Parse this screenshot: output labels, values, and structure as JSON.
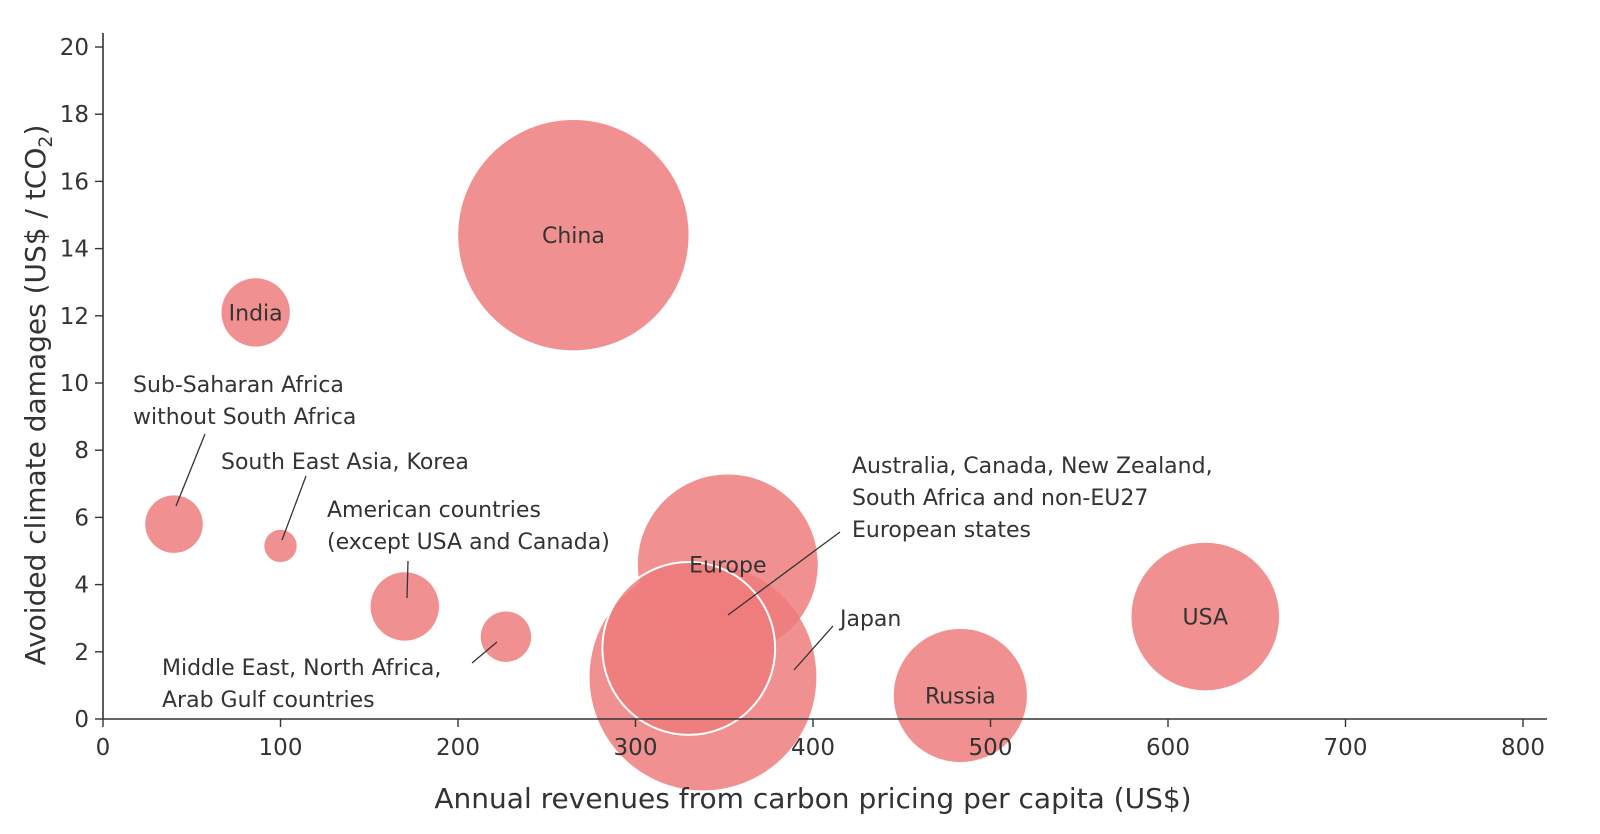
{
  "chart_data": {
    "type": "scatter",
    "subtype": "bubble",
    "xlabel": "Annual revenues from carbon pricing per capita (US$)",
    "ylabel": {
      "main": "Avoided climate damages (US$ / tCO",
      "sub": "2",
      "end": ")"
    },
    "xlim": [
      0,
      800
    ],
    "ylim": [
      0,
      20
    ],
    "xticks": [
      "0",
      "100",
      "200",
      "300",
      "400",
      "500",
      "600",
      "700",
      "800"
    ],
    "yticks": [
      "0",
      "2",
      "4",
      "6",
      "8",
      "10",
      "12",
      "14",
      "16",
      "18",
      "20"
    ],
    "grid": false,
    "legend": "none",
    "color": "#ef7c7c",
    "points": [
      {
        "name": "China",
        "label_lines": [
          "China"
        ],
        "x": 265,
        "y": 14.4,
        "size": 64,
        "label_inside": true
      },
      {
        "name": "India",
        "label_lines": [
          "India"
        ],
        "x": 86,
        "y": 12.1,
        "size": 19,
        "label_inside": true
      },
      {
        "name": "Sub-Saharan Africa without South Africa",
        "label_lines": [
          "Sub-Saharan Africa",
          "without South Africa"
        ],
        "x": 40,
        "y": 5.8,
        "size": 16,
        "label_inside": false
      },
      {
        "name": "South East Asia, Korea",
        "label_lines": [
          "South East Asia, Korea"
        ],
        "x": 100,
        "y": 5.15,
        "size": 9,
        "label_inside": false
      },
      {
        "name": "American countries (except USA and Canada)",
        "label_lines": [
          "American countries",
          "(except USA and Canada)"
        ],
        "x": 170,
        "y": 3.35,
        "size": 19,
        "label_inside": false
      },
      {
        "name": "Middle East, North Africa, Arab Gulf countries",
        "label_lines": [
          "Middle East, North Africa,",
          "Arab Gulf countries"
        ],
        "x": 227,
        "y": 2.45,
        "size": 14,
        "label_inside": false
      },
      {
        "name": "Europe",
        "label_lines": [
          "Europe"
        ],
        "x": 352,
        "y": 4.6,
        "size": 50,
        "label_inside": true
      },
      {
        "name": "Japan",
        "label_lines": [
          "Japan"
        ],
        "x": 338,
        "y": 1.25,
        "size": 63,
        "label_inside": false
      },
      {
        "name": "Australia, Canada, New Zealand, South Africa and non-EU27 European states",
        "label_lines": [
          "Australia, Canada, New Zealand,",
          "South Africa and non-EU27",
          "European states"
        ],
        "x": 330,
        "y": 2.1,
        "size": 48,
        "label_inside": false
      },
      {
        "name": "Russia",
        "label_lines": [
          "Russia"
        ],
        "x": 483,
        "y": 0.7,
        "size": 37,
        "label_inside": true
      },
      {
        "name": "USA",
        "label_lines": [
          "USA"
        ],
        "x": 621,
        "y": 3.05,
        "size": 41,
        "label_inside": true
      }
    ]
  }
}
